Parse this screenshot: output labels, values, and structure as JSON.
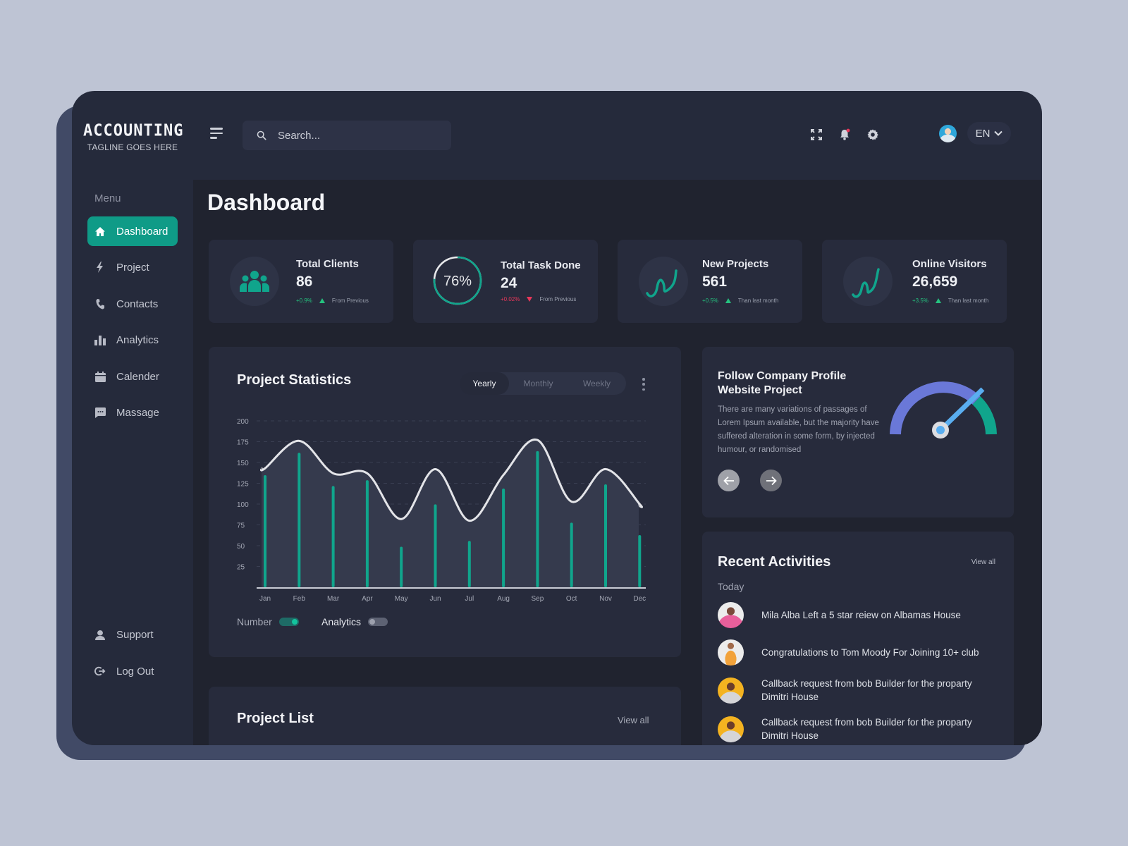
{
  "brand": {
    "title": "ACCOUNTING",
    "tagline": "TAGLINE GOES HERE"
  },
  "header": {
    "search_placeholder": "Search...",
    "icons": [
      "hamburger-menu-icon",
      "search-icon",
      "fullscreen-icon",
      "bell-icon",
      "gear-icon"
    ],
    "notification_dot_color": "#e8375a",
    "language": "EN"
  },
  "sidebar": {
    "menu_label": "Menu",
    "items": [
      {
        "label": "Dashboard",
        "icon": "home-icon",
        "active": true
      },
      {
        "label": "Project",
        "icon": "bolt-icon",
        "active": false
      },
      {
        "label": "Contacts",
        "icon": "phone-icon",
        "active": false
      },
      {
        "label": "Analytics",
        "icon": "bar-chart-icon",
        "active": false
      },
      {
        "label": "Calender",
        "icon": "calendar-icon",
        "active": false
      },
      {
        "label": "Massage",
        "icon": "message-icon",
        "active": false
      }
    ],
    "bottom_items": [
      {
        "label": "Support",
        "icon": "support-agent-icon"
      },
      {
        "label": "Log Out",
        "icon": "logout-icon"
      }
    ]
  },
  "page": {
    "title": "Dashboard"
  },
  "stats": [
    {
      "title": "Total Clients",
      "value": "86",
      "delta": "+0.9%",
      "direction": "up",
      "note": "From Previous",
      "icon": "users-icon"
    },
    {
      "title": "Total  Task Done",
      "value": "24",
      "delta": "+0.02%",
      "direction": "down",
      "note": "From Previous",
      "progress_label": "76%",
      "progress": 76
    },
    {
      "title": "New Projects",
      "value": "561",
      "delta": "+0.5%",
      "direction": "up",
      "note": "Than last month",
      "icon": "trend-icon"
    },
    {
      "title": "Online Visitors",
      "value": "26,659",
      "delta": "+3.5%",
      "direction": "up",
      "note": "Than last month",
      "icon": "trend-icon"
    }
  ],
  "project_statistics": {
    "title": "Project Statistics",
    "tabs": [
      {
        "label": "Yearly",
        "active": true
      },
      {
        "label": "Monthly",
        "active": false
      },
      {
        "label": "Weekly",
        "active": false
      }
    ],
    "legend": [
      {
        "label": "Number",
        "toggle": "on"
      },
      {
        "label": "Analytics",
        "toggle": "off"
      }
    ]
  },
  "chart_data": {
    "type": "bar",
    "title": "Project Statistics",
    "categories": [
      "Jan",
      "Feb",
      "Mar",
      "Apr",
      "May",
      "Jun",
      "Jul",
      "Aug",
      "Sep",
      "Oct",
      "Nov",
      "Dec"
    ],
    "series": [
      {
        "name": "Number",
        "type": "bar",
        "color": "#10a58c",
        "values": [
          133,
          160,
          120,
          127,
          47,
          98,
          54,
          117,
          162,
          76,
          122,
          61
        ]
      },
      {
        "name": "Analytics",
        "type": "line",
        "color": "#e3e4e8",
        "values": [
          143,
          176,
          137,
          137,
          82,
          142,
          80,
          135,
          177,
          103,
          142,
          100
        ]
      }
    ],
    "yticks": [
      25,
      50,
      75,
      100,
      125,
      150,
      175,
      200
    ],
    "ylim": [
      0,
      200
    ],
    "xlabel": "",
    "ylabel": "",
    "grid": "dashed horizontal",
    "legend_position": "bottom-left"
  },
  "follow_card": {
    "title": "Follow Company Profile Website Project",
    "description": "There are many variations of passages of Lorem Ipsum available, but the majority have suffered alteration in some form, by injected humour, or randomised",
    "gauge_colors": {
      "main": "#6a78d8",
      "end": "#10a58c",
      "needle": "#5aaef0"
    },
    "prev_icon": "arrow-left-icon",
    "next_icon": "arrow-right-icon"
  },
  "recent_activities": {
    "title": "Recent Activities",
    "view_all": "View all",
    "group": "Today",
    "items": [
      {
        "text": "Mila Alba Left a 5 star reiew on Albamas House",
        "avatar_color": "#e85f9b"
      },
      {
        "text": "Congratulations to Tom Moody For Joining 10+ club",
        "avatar_color": "#f0f0f0"
      },
      {
        "text": "Callback request from bob Builder for the proparty Dimitri House",
        "avatar_color": "#f4b320"
      },
      {
        "text": "Callback request from bob Builder for the proparty Dimitri House",
        "avatar_color": "#f4b320"
      }
    ]
  },
  "project_list": {
    "title": "Project List",
    "view_all": "View all"
  },
  "colors": {
    "accent": "#0f9b87",
    "background": "#252a3b",
    "main": "#20232f",
    "card": "#272b3c",
    "positive": "#25c27f",
    "negative": "#e8375a"
  }
}
